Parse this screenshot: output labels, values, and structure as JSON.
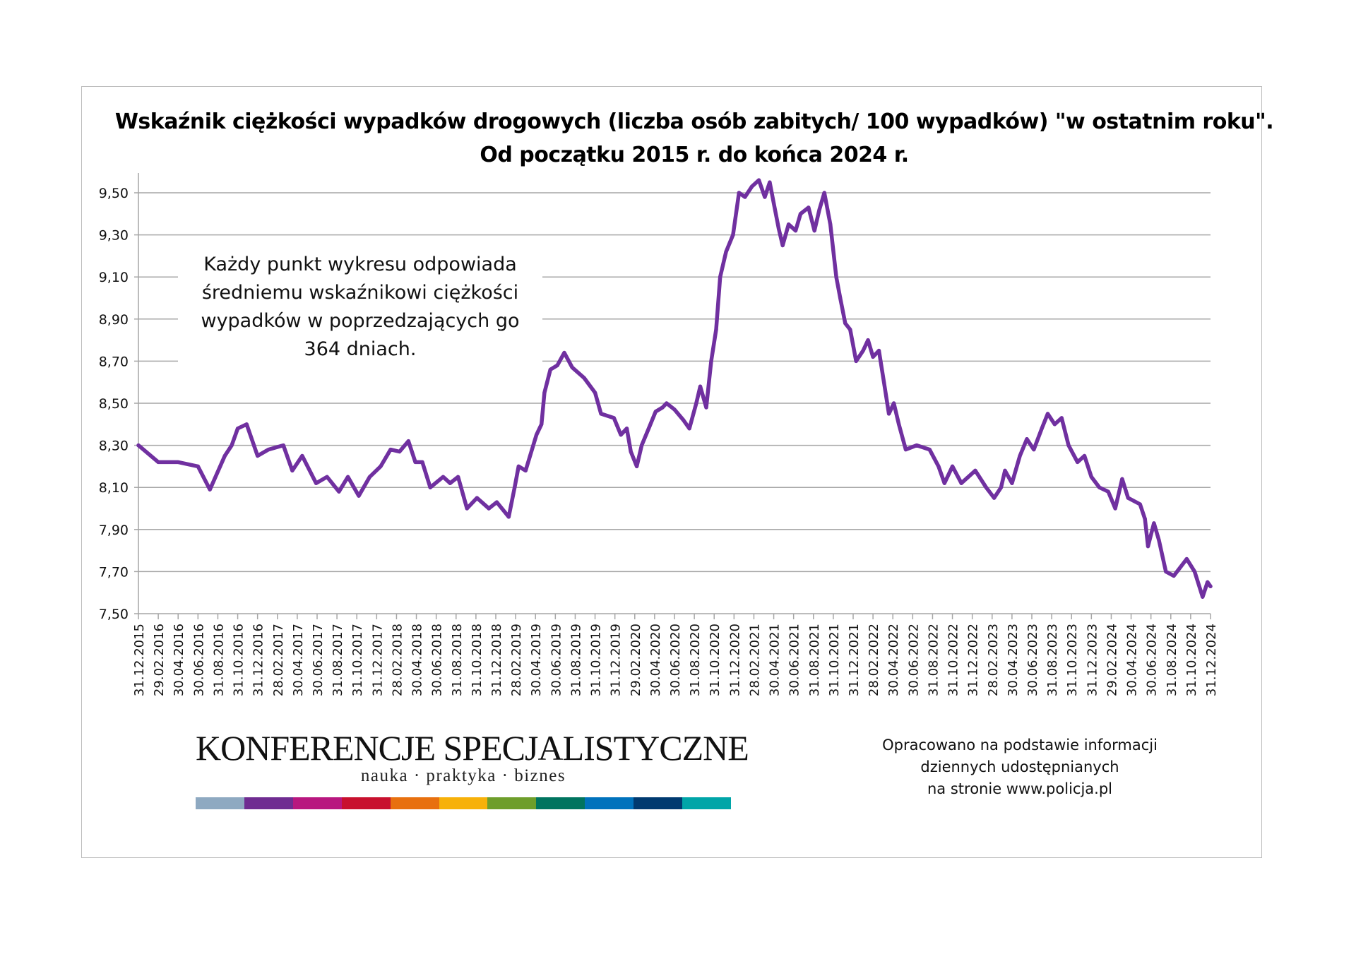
{
  "chart_data": {
    "type": "line",
    "title": "Wskaźnik ciężkości wypadków drogowych (liczba osób zabitych/ 100 wypadków) \"w ostatnim roku\".",
    "subtitle": "Od początku 2015 r. do końca 2024 r.",
    "xlabel": "",
    "ylabel": "",
    "x_unit": "months since 31.12.2015",
    "ylim": [
      7.5,
      9.6
    ],
    "y_ticks": [
      "7,50",
      "7,70",
      "7,90",
      "8,10",
      "8,30",
      "8,50",
      "8,70",
      "8,90",
      "9,10",
      "9,30",
      "9,50"
    ],
    "y_tick_values": [
      7.5,
      7.7,
      7.9,
      8.1,
      8.3,
      8.5,
      8.7,
      8.9,
      9.1,
      9.3,
      9.5
    ],
    "x_ticks": [
      "31.12.2015",
      "29.02.2016",
      "30.04.2016",
      "30.06.2016",
      "31.08.2016",
      "31.10.2016",
      "31.12.2016",
      "28.02.2017",
      "30.04.2017",
      "30.06.2017",
      "31.08.2017",
      "31.10.2017",
      "31.12.2017",
      "28.02.2018",
      "30.04.2018",
      "30.06.2018",
      "31.08.2018",
      "31.10.2018",
      "31.12.2018",
      "28.02.2019",
      "30.04.2019",
      "30.06.2019",
      "31.08.2019",
      "31.10.2019",
      "31.12.2019",
      "29.02.2020",
      "30.04.2020",
      "30.06.2020",
      "31.08.2020",
      "31.10.2020",
      "31.12.2020",
      "28.02.2021",
      "30.04.2021",
      "30.06.2021",
      "31.08.2021",
      "31.10.2021",
      "31.12.2021",
      "28.02.2022",
      "30.04.2022",
      "30.06.2022",
      "31.08.2022",
      "31.10.2022",
      "31.12.2022",
      "28.02.2023",
      "30.04.2023",
      "30.06.2023",
      "31.08.2023",
      "31.10.2023",
      "31.12.2023",
      "29.02.2024",
      "30.04.2024",
      "30.06.2024",
      "31.08.2024",
      "31.10.2024",
      "31.12.2024"
    ],
    "grid": true,
    "series": [
      {
        "name": "Wskaźnik ciężkości",
        "color": "#7030A0",
        "x": [
          0,
          2.0,
          4.0,
          6.0,
          7.2,
          8.7,
          9.4,
          10.0,
          10.9,
          12.0,
          13.1,
          14.6,
          15.5,
          16.5,
          17.9,
          19.0,
          20.2,
          21.1,
          22.2,
          23.3,
          24.4,
          25.4,
          26.3,
          27.2,
          27.9,
          28.6,
          29.4,
          30.7,
          31.4,
          32.2,
          33.1,
          34.1,
          35.3,
          36.1,
          37.3,
          37.9,
          38.3,
          39.0,
          40.1,
          40.6,
          40.9,
          41.5,
          42.2,
          42.9,
          43.7,
          44.9,
          46.0,
          46.6,
          47.9,
          48.6,
          49.2,
          49.6,
          50.2,
          50.7,
          51.4,
          52.1,
          52.8,
          53.2,
          54.0,
          54.9,
          55.5,
          56.2,
          56.6,
          57.2,
          57.7,
          58.2,
          58.6,
          59.2,
          59.9,
          60.5,
          61.1,
          61.8,
          62.5,
          63.1,
          63.6,
          64.0,
          64.5,
          64.9,
          65.5,
          66.2,
          66.7,
          67.5,
          68.1,
          68.6,
          69.1,
          69.7,
          70.3,
          70.7,
          71.2,
          71.7,
          72.3,
          73.0,
          73.5,
          74.0,
          74.6,
          75.1,
          75.6,
          76.1,
          76.6,
          77.3,
          78.4,
          79.7,
          80.6,
          81.2,
          82.0,
          82.9,
          84.3,
          85.4,
          86.2,
          86.9,
          87.3,
          88.0,
          88.8,
          89.5,
          90.2,
          91.0,
          91.6,
          92.3,
          93.0,
          93.7,
          94.6,
          95.3,
          96.0,
          96.8,
          97.7,
          98.4,
          99.1,
          99.7,
          100.9,
          101.4,
          101.7,
          102.3,
          102.8,
          103.5,
          104.3,
          105.6,
          106.4,
          107.2,
          107.7,
          108
        ],
        "values": [
          8.3,
          8.22,
          8.22,
          8.2,
          8.09,
          8.25,
          8.3,
          8.38,
          8.4,
          8.25,
          8.28,
          8.3,
          8.18,
          8.25,
          8.12,
          8.15,
          8.08,
          8.15,
          8.06,
          8.15,
          8.2,
          8.28,
          8.27,
          8.32,
          8.22,
          8.22,
          8.1,
          8.15,
          8.12,
          8.15,
          8.0,
          8.05,
          8.0,
          8.03,
          7.96,
          8.1,
          8.2,
          8.18,
          8.35,
          8.4,
          8.55,
          8.66,
          8.68,
          8.74,
          8.67,
          8.62,
          8.55,
          8.45,
          8.43,
          8.35,
          8.38,
          8.27,
          8.2,
          8.3,
          8.38,
          8.46,
          8.48,
          8.5,
          8.47,
          8.42,
          8.38,
          8.5,
          8.58,
          8.48,
          8.7,
          8.85,
          9.1,
          9.22,
          9.3,
          9.5,
          9.48,
          9.53,
          9.56,
          9.48,
          9.55,
          9.45,
          9.33,
          9.25,
          9.35,
          9.32,
          9.4,
          9.43,
          9.32,
          9.42,
          9.5,
          9.35,
          9.1,
          9.0,
          8.88,
          8.85,
          8.7,
          8.75,
          8.8,
          8.72,
          8.75,
          8.6,
          8.45,
          8.5,
          8.4,
          8.28,
          8.3,
          8.28,
          8.2,
          8.12,
          8.2,
          8.12,
          8.18,
          8.1,
          8.05,
          8.1,
          8.18,
          8.12,
          8.25,
          8.33,
          8.28,
          8.38,
          8.45,
          8.4,
          8.43,
          8.3,
          8.22,
          8.25,
          8.15,
          8.1,
          8.08,
          8.0,
          8.14,
          8.05,
          8.02,
          7.95,
          7.82,
          7.93,
          7.85,
          7.7,
          7.68,
          7.76,
          7.7,
          7.58,
          7.65,
          7.63
        ]
      }
    ],
    "annotation": [
      "Każdy punkt wykresu odpowiada",
      "średniemu wskaźnikowi ciężkości",
      "wypadków w poprzedzających go",
      "364 dniach."
    ],
    "legend": "none"
  },
  "logo": {
    "name": "KONFERENCJE SPECJALISTYCZNE",
    "tagline": "nauka · praktyka · biznes",
    "colors": [
      "#8EA9C1",
      "#6F2C91",
      "#B8177F",
      "#C8102E",
      "#E8700F",
      "#F7B10A",
      "#6E9E2B",
      "#00745F",
      "#0072BC",
      "#003A70",
      "#00A5A8"
    ]
  },
  "source": [
    "Opracowano na podstawie informacji",
    "dziennych udostępnianych",
    "na stronie www.policja.pl"
  ]
}
